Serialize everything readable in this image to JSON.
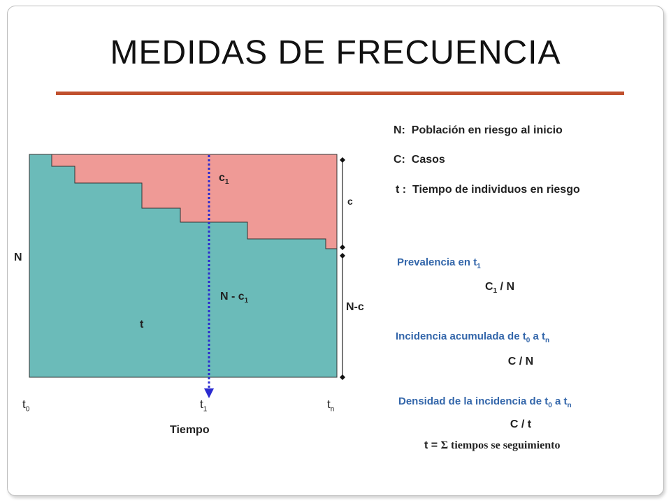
{
  "title": "MEDIDAS DE FRECUENCIA",
  "colors": {
    "cases": "#ef9a96",
    "at_risk": "#6bbbb9",
    "accent_rule": "#c0502d",
    "formula_title": "#3366aa",
    "time_line": "#2b2bd0"
  },
  "legend": [
    {
      "key": "N:",
      "text": "Población en riesgo al inicio"
    },
    {
      "key": "C:",
      "text": "Casos"
    },
    {
      "key": "t :",
      "text": "Tiempo de individuos en riesgo"
    }
  ],
  "diagram": {
    "region_cases_label": "c",
    "region_cases_sub": "1",
    "region_risk_label": "N - c",
    "region_risk_sub": "1",
    "person_time_label": "t",
    "left_label": "N",
    "right_top_label": "c",
    "right_bottom_label": "N-c",
    "time_ticks": [
      {
        "base": "t",
        "sub": "0"
      },
      {
        "base": "t",
        "sub": "1"
      },
      {
        "base": "t",
        "sub": "n"
      }
    ],
    "axis_label": "Tiempo"
  },
  "measures": {
    "prevalence": {
      "title": "Prevalencia en t",
      "title_sub": "1",
      "formula_a": "C",
      "formula_sub": "1",
      "formula_b": " /  N"
    },
    "cumulative": {
      "title_a": "Incidencia acumulada de t",
      "sub0": "0",
      "title_mid": " a  t",
      "subn": "n",
      "formula": "C / N"
    },
    "density": {
      "title_a": "Densidad de la incidencia de t",
      "sub0": "0",
      "title_mid": " a  t",
      "subn": "n",
      "formula": "C / t",
      "note_a": "t = ",
      "note_sigma": "Σ",
      "note_b": " tiempos se seguimiento"
    }
  }
}
